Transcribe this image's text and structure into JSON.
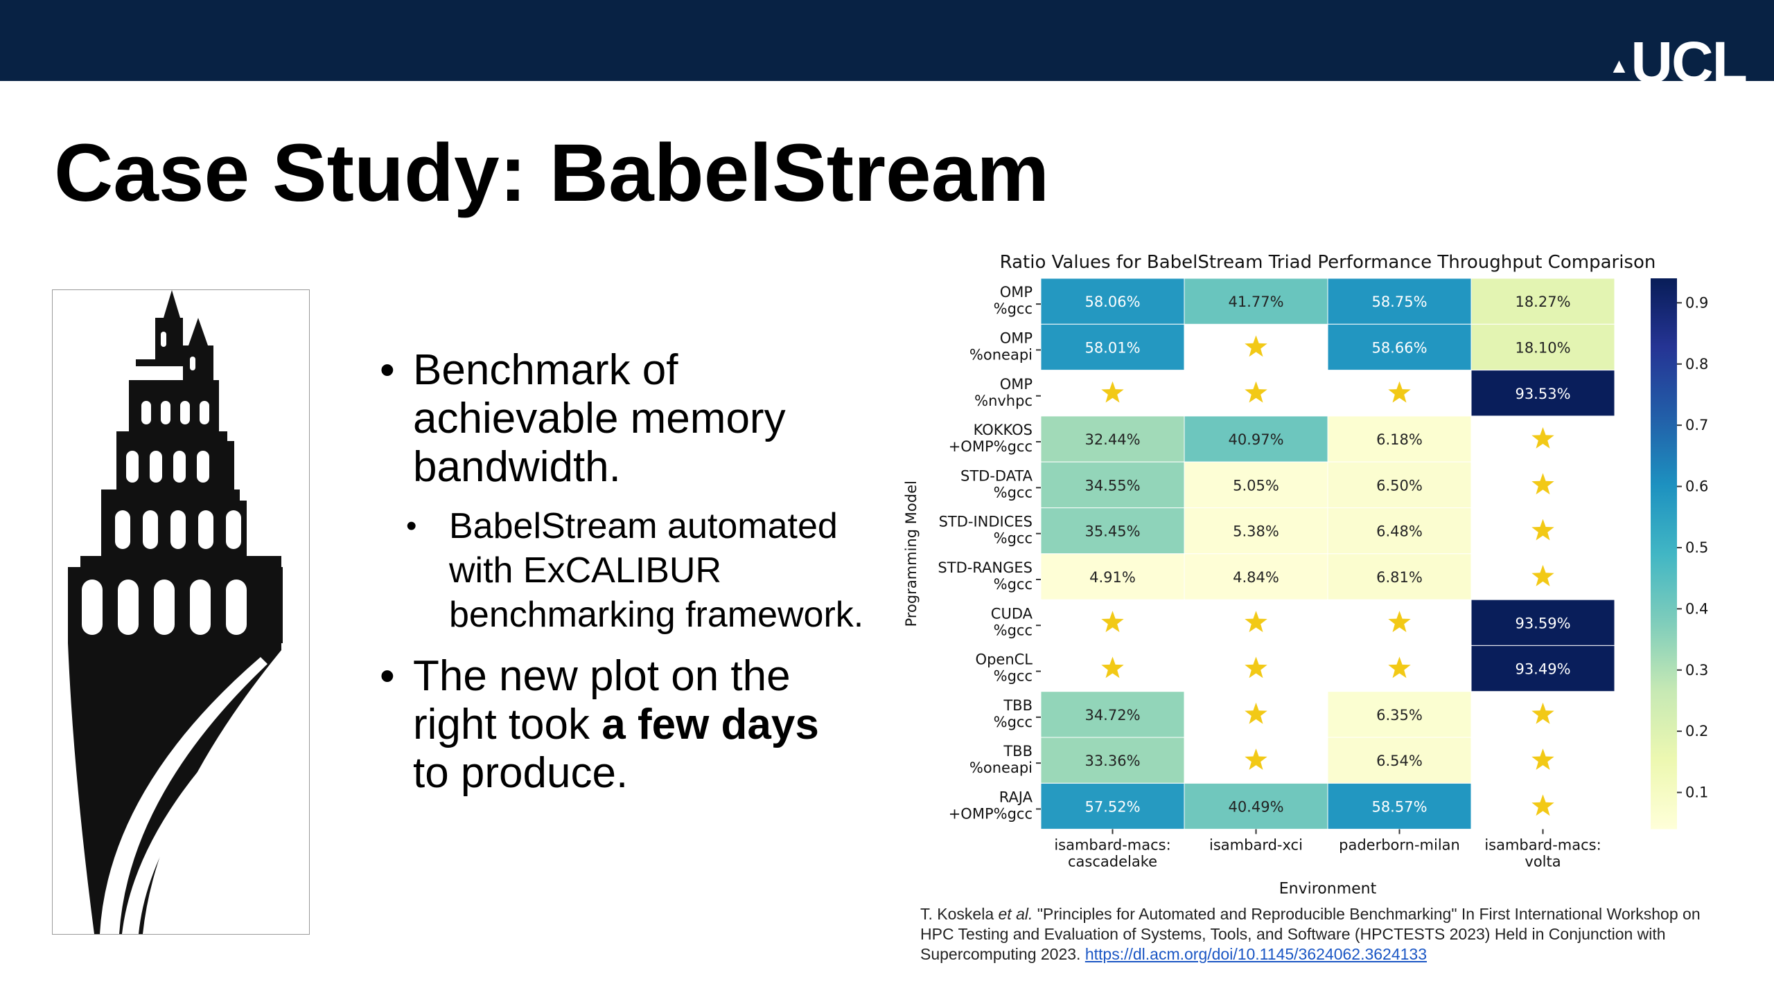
{
  "slide": {
    "title": "Case Study: BabelStream",
    "logo_text": "UCL",
    "bullets": {
      "b1": "Benchmark of achievable memory bandwidth.",
      "b1_sub": "BabelStream automated with ExCALIBUR benchmarking framework.",
      "b2_pre": "The new plot on the right took ",
      "b2_bold": "a few days",
      "b2_post": " to produce."
    },
    "citation": {
      "authors": "T. Koskela ",
      "etal": "et al.",
      "text": " \"Principles for Automated and Reproducible Benchmarking\" In First International Workshop on HPC Testing and Evaluation of Systems, Tools, and Software (HPCTESTS 2023) Held in Conjunction with Supercomputing 2023. ",
      "link": "https://dl.acm.org/doi/10.1145/3624062.3624133"
    },
    "colors": {
      "header_bar": "#082244",
      "star": "#f2c916",
      "link": "#1a56c4"
    }
  },
  "chart_data": {
    "type": "heatmap",
    "title": "Ratio Values for BabelStream Triad Performance Throughput Comparison",
    "xlabel": "Environment",
    "ylabel": "Programming Model",
    "columns": [
      [
        "isambard-macs:",
        "cascadelake"
      ],
      [
        "isambard-xci"
      ],
      [
        "paderborn-milan"
      ],
      [
        "isambard-macs:",
        "volta"
      ]
    ],
    "rows": [
      [
        "OMP",
        "%gcc"
      ],
      [
        "OMP",
        "%oneapi"
      ],
      [
        "OMP",
        "%nvhpc"
      ],
      [
        "KOKKOS",
        "+OMP%gcc"
      ],
      [
        "STD-DATA",
        "%gcc"
      ],
      [
        "STD-INDICES",
        "%gcc"
      ],
      [
        "STD-RANGES",
        "%gcc"
      ],
      [
        "CUDA",
        "%gcc"
      ],
      [
        "OpenCL",
        "%gcc"
      ],
      [
        "TBB",
        "%gcc"
      ],
      [
        "TBB",
        "%oneapi"
      ],
      [
        "RAJA",
        "+OMP%gcc"
      ]
    ],
    "values": [
      [
        58.06,
        41.77,
        58.75,
        18.27
      ],
      [
        58.01,
        "star",
        58.66,
        18.1
      ],
      [
        "star",
        "star",
        "star",
        93.53
      ],
      [
        32.44,
        40.97,
        6.18,
        "star"
      ],
      [
        34.55,
        5.05,
        6.5,
        "star"
      ],
      [
        35.45,
        5.38,
        6.48,
        "star"
      ],
      [
        4.91,
        4.84,
        6.81,
        "star"
      ],
      [
        "star",
        "star",
        "star",
        93.59
      ],
      [
        "star",
        "star",
        "star",
        93.49
      ],
      [
        34.72,
        "star",
        6.35,
        "star"
      ],
      [
        33.36,
        "star",
        6.54,
        "star"
      ],
      [
        57.52,
        40.49,
        58.57,
        "star"
      ]
    ],
    "value_suffix": "%",
    "colorbar": {
      "min": 0.04,
      "max": 0.94,
      "ticks": [
        "0.1",
        "0.2",
        "0.3",
        "0.4",
        "0.5",
        "0.6",
        "0.7",
        "0.8",
        "0.9"
      ],
      "colormap": "YlGnBu"
    },
    "grid": false
  }
}
